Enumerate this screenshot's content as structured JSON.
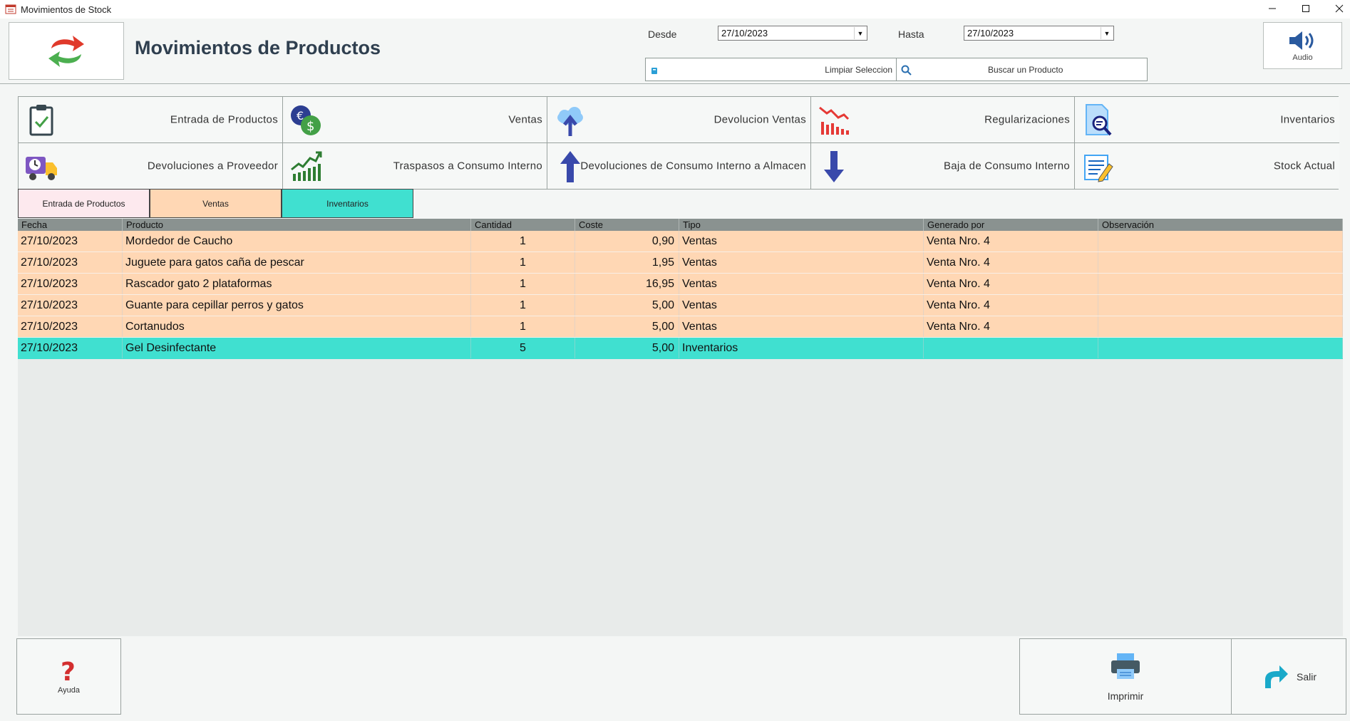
{
  "window": {
    "title": "Movimientos de Stock"
  },
  "header": {
    "title": "Movimientos de Productos",
    "desde_label": "Desde",
    "desde_value": "27/10/2023",
    "hasta_label": "Hasta",
    "hasta_value": "27/10/2023",
    "clear_label": "Limpiar Seleccion",
    "search_label": "Buscar un Producto",
    "audio_label": "Audio"
  },
  "modules": [
    {
      "label": "Entrada de Productos",
      "icon": "clipboard-check-icon"
    },
    {
      "label": "Ventas",
      "icon": "money-exchange-icon"
    },
    {
      "label": "Devolucion Ventas",
      "icon": "cloud-upload-icon"
    },
    {
      "label": "Regularizaciones",
      "icon": "chart-down-icon"
    },
    {
      "label": "Inventarios",
      "icon": "document-search-icon"
    },
    {
      "label": "Devoluciones a Proveedor",
      "icon": "delivery-truck-icon"
    },
    {
      "label": "Traspasos a Consumo Interno",
      "icon": "chart-up-icon"
    },
    {
      "label": "Devoluciones de Consumo Interno a Almacen",
      "icon": "arrow-up-icon"
    },
    {
      "label": "Baja de Consumo Interno",
      "icon": "arrow-down-icon"
    },
    {
      "label": "Stock Actual",
      "icon": "document-edit-icon"
    }
  ],
  "filters": [
    {
      "label": "Entrada de Productos",
      "color": "#fde9ee"
    },
    {
      "label": "Ventas",
      "color": "#ffd7b4"
    },
    {
      "label": "Inventarios",
      "color": "#40e0d0"
    }
  ],
  "table": {
    "columns": [
      "Fecha",
      "Producto",
      "Cantidad",
      "Coste",
      "Tipo",
      "Generado por",
      "Observación"
    ],
    "rows": [
      {
        "fecha": "27/10/2023",
        "producto": "Mordedor de Caucho",
        "cantidad": "1",
        "coste": "0,90",
        "tipo": "Ventas",
        "generado": "Venta Nro. 4",
        "obs": "",
        "color": "#ffd7b4"
      },
      {
        "fecha": "27/10/2023",
        "producto": "Juguete para gatos caña de pescar",
        "cantidad": "1",
        "coste": "1,95",
        "tipo": "Ventas",
        "generado": "Venta Nro. 4",
        "obs": "",
        "color": "#ffd7b4"
      },
      {
        "fecha": "27/10/2023",
        "producto": "Rascador gato 2 plataformas",
        "cantidad": "1",
        "coste": "16,95",
        "tipo": "Ventas",
        "generado": "Venta Nro. 4",
        "obs": "",
        "color": "#ffd7b4"
      },
      {
        "fecha": "27/10/2023",
        "producto": "Guante para cepillar perros y gatos",
        "cantidad": "1",
        "coste": "5,00",
        "tipo": "Ventas",
        "generado": "Venta Nro. 4",
        "obs": "",
        "color": "#ffd7b4"
      },
      {
        "fecha": "27/10/2023",
        "producto": "Cortanudos",
        "cantidad": "1",
        "coste": "5,00",
        "tipo": "Ventas",
        "generado": "Venta Nro. 4",
        "obs": "",
        "color": "#ffd7b4"
      },
      {
        "fecha": "27/10/2023",
        "producto": "Gel Desinfectante",
        "cantidad": "5",
        "coste": "5,00",
        "tipo": "Inventarios",
        "generado": "",
        "obs": "",
        "color": "#40e0d0"
      }
    ]
  },
  "footer": {
    "help_label": "Ayuda",
    "print_label": "Imprimir",
    "exit_label": "Salir"
  }
}
